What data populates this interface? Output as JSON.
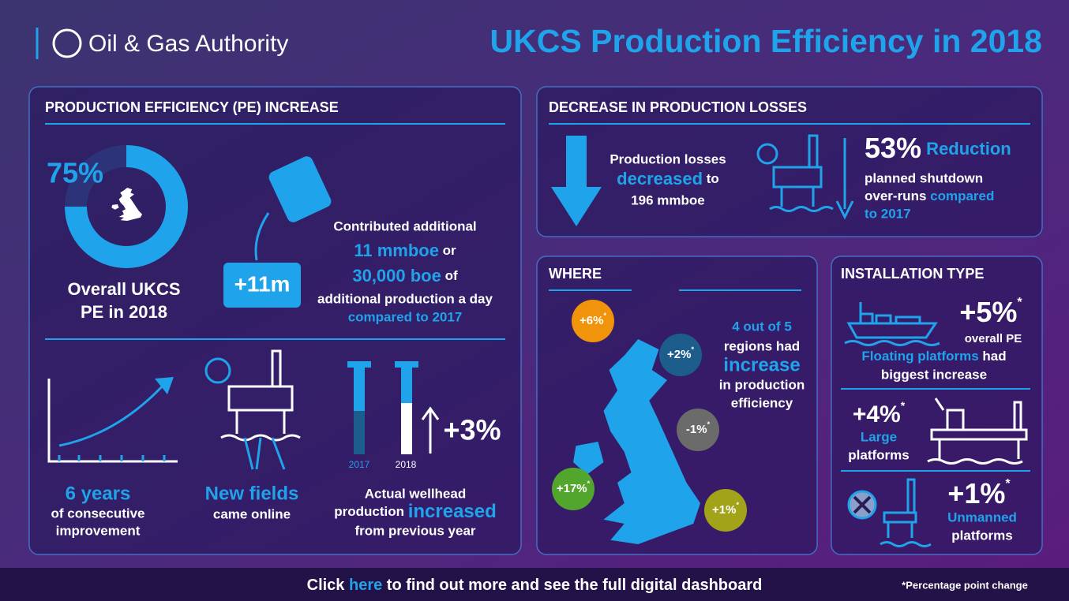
{
  "header": {
    "organisation": "Oil & Gas Authority",
    "title": "UKCS Production Efficiency in 2018"
  },
  "footnote_mark": "*",
  "pe_increase": {
    "heading": "PRODUCTION EFFICIENCY (PE) INCREASE",
    "overall": {
      "value": 75,
      "label": "75%"
    },
    "overall_caption": [
      "Overall UKCS",
      "PE in 2018"
    ],
    "barrel_label": "+11m",
    "contribution": {
      "line1": "Contributed additional",
      "amount1": "11 mmboe",
      "joiner1": " or",
      "amount2": "30,000 boe",
      "joiner2": " of",
      "line4": "additional production a day",
      "line5": "compared to 2017"
    },
    "improvement": {
      "headline": "6 years",
      "lines": [
        "of consecutive",
        "improvement"
      ]
    },
    "new_fields": {
      "headline": "New fields",
      "line": "came online"
    },
    "wellhead": {
      "years": [
        "2017",
        "2018"
      ],
      "change": "+3%",
      "line1": "Actual wellhead",
      "line2": "production ",
      "highlight": "increased",
      "line3": "from previous year"
    }
  },
  "losses": {
    "heading": "DECREASE IN PRODUCTION LOSSES",
    "line1": "Production losses",
    "highlight": "decreased",
    "line2_rest": " to",
    "line3": "196 mmboe",
    "reduction": "53%",
    "reduction_word": " Reduction",
    "detail1": "planned shutdown",
    "detail2": "over-runs ",
    "detail2_highlight": "compared",
    "detail3": "to 2017"
  },
  "where": {
    "heading": "WHERE",
    "regions": [
      {
        "label": "+6%",
        "color": "#f0940c"
      },
      {
        "label": "+2%",
        "color": "#1d5d8c"
      },
      {
        "label": "-1%",
        "color": "#6b6b6b"
      },
      {
        "label": "+17%",
        "color": "#52a62e"
      },
      {
        "label": "+1%",
        "color": "#a3a31a"
      }
    ],
    "summary": [
      "4 out of 5",
      "regions had",
      "increase",
      "in production",
      "efficiency"
    ]
  },
  "installation": {
    "heading": "INSTALLATION TYPE",
    "floating": {
      "change": "+5%",
      "note": "overall PE",
      "line1_highlight": "Floating platforms",
      "line1_rest": " had",
      "line2": "biggest increase"
    },
    "large": {
      "change": "+4%",
      "line1": "Large",
      "line2": "platforms"
    },
    "unmanned": {
      "change": "+1%",
      "line1": "Unmanned",
      "line2": "platforms"
    }
  },
  "footer": {
    "before": "Click ",
    "link": "here",
    "after": " to find out more and see the full digital dashboard",
    "note": "*Percentage point change"
  }
}
